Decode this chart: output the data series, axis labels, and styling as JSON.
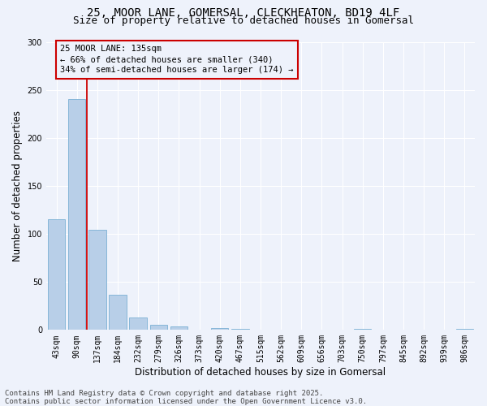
{
  "title_line1": "25, MOOR LANE, GOMERSAL, CLECKHEATON, BD19 4LF",
  "title_line2": "Size of property relative to detached houses in Gomersal",
  "xlabel": "Distribution of detached houses by size in Gomersal",
  "ylabel": "Number of detached properties",
  "categories": [
    "43sqm",
    "90sqm",
    "137sqm",
    "184sqm",
    "232sqm",
    "279sqm",
    "326sqm",
    "373sqm",
    "420sqm",
    "467sqm",
    "515sqm",
    "562sqm",
    "609sqm",
    "656sqm",
    "703sqm",
    "750sqm",
    "797sqm",
    "845sqm",
    "892sqm",
    "939sqm",
    "986sqm"
  ],
  "values": [
    115,
    240,
    104,
    37,
    13,
    5,
    4,
    0,
    2,
    1,
    0,
    0,
    0,
    0,
    0,
    1,
    0,
    0,
    0,
    0,
    1
  ],
  "bar_color": "#b8cfe8",
  "bar_edge_color": "#7aafd4",
  "annotation_line1": "25 MOOR LANE: 135sqm",
  "annotation_line2": "← 66% of detached houses are smaller (340)",
  "annotation_line3": "34% of semi-detached houses are larger (174) →",
  "vline_color": "#cc0000",
  "ylim": [
    0,
    300
  ],
  "yticks": [
    0,
    50,
    100,
    150,
    200,
    250,
    300
  ],
  "background_color": "#eef2fb",
  "grid_color": "#ffffff",
  "footer_line1": "Contains HM Land Registry data © Crown copyright and database right 2025.",
  "footer_line2": "Contains public sector information licensed under the Open Government Licence v3.0.",
  "annotation_box_edge_color": "#cc0000",
  "title_fontsize": 10,
  "subtitle_fontsize": 9,
  "axis_label_fontsize": 8.5,
  "tick_fontsize": 7,
  "annotation_fontsize": 7.5,
  "footer_fontsize": 6.5
}
